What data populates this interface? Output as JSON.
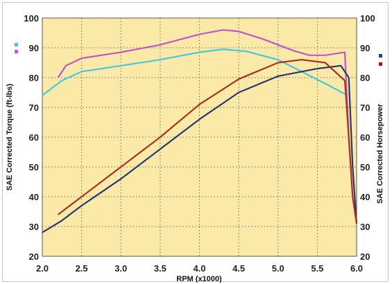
{
  "chart_data": {
    "type": "line",
    "xlabel": "RPM (x1000)",
    "ylabel_left": "SAE Corrected Torque (ft-lbs)",
    "ylabel_right": "SAE Corrected Horsepower",
    "xlim": [
      2.0,
      6.0
    ],
    "ylim": [
      20,
      100
    ],
    "x_ticks": [
      "2.0",
      "2.5",
      "3.0",
      "3.5",
      "4.0",
      "4.5",
      "5.0",
      "5.5",
      "6.0"
    ],
    "y_ticks_left": [
      "20",
      "30",
      "40",
      "50",
      "60",
      "70",
      "80",
      "90",
      "100"
    ],
    "y_ticks_right": [
      "20",
      "30",
      "40",
      "50",
      "60",
      "70",
      "80",
      "90",
      "100"
    ],
    "grid": true,
    "plot_background": "#fbe9a8",
    "series": [
      {
        "axis": "left",
        "legend_color": "#2fd0e8",
        "color": "#44c8dc",
        "x": [
          2.0,
          2.25,
          2.5,
          3.0,
          3.5,
          4.0,
          4.3,
          4.6,
          5.0,
          5.3,
          5.6,
          5.85
        ],
        "y": [
          74,
          79,
          82,
          84,
          86,
          88.5,
          89.5,
          88.8,
          86,
          82,
          78,
          74.5
        ]
      },
      {
        "axis": "left",
        "legend_color": "#d050d8",
        "color": "#c455c8",
        "x": [
          2.2,
          2.3,
          2.5,
          3.0,
          3.5,
          4.0,
          4.3,
          4.5,
          4.8,
          5.0,
          5.2,
          5.4,
          5.6,
          5.85,
          5.9,
          5.95,
          6.0
        ],
        "y": [
          80,
          84,
          86.5,
          88.5,
          91,
          94.5,
          96,
          95.5,
          93,
          91,
          89,
          87.5,
          87.5,
          88.5,
          60,
          40,
          31
        ]
      },
      {
        "axis": "right",
        "legend_color": "#2a3a8c",
        "color": "#2b3570",
        "x": [
          2.0,
          2.25,
          2.5,
          3.0,
          3.5,
          4.0,
          4.5,
          5.0,
          5.5,
          5.8,
          5.9,
          5.95,
          6.0
        ],
        "y": [
          28,
          32,
          37,
          46,
          56,
          66,
          75,
          80.5,
          83,
          84,
          80,
          50,
          31
        ]
      },
      {
        "axis": "right",
        "legend_color": "#9b1b1b",
        "color": "#a8321e",
        "x": [
          2.2,
          2.5,
          3.0,
          3.5,
          4.0,
          4.5,
          5.0,
          5.3,
          5.6,
          5.85,
          5.9,
          5.95,
          6.0
        ],
        "y": [
          34,
          40,
          50,
          60,
          71,
          79.5,
          85,
          86,
          85,
          79,
          60,
          40,
          31
        ]
      }
    ]
  }
}
